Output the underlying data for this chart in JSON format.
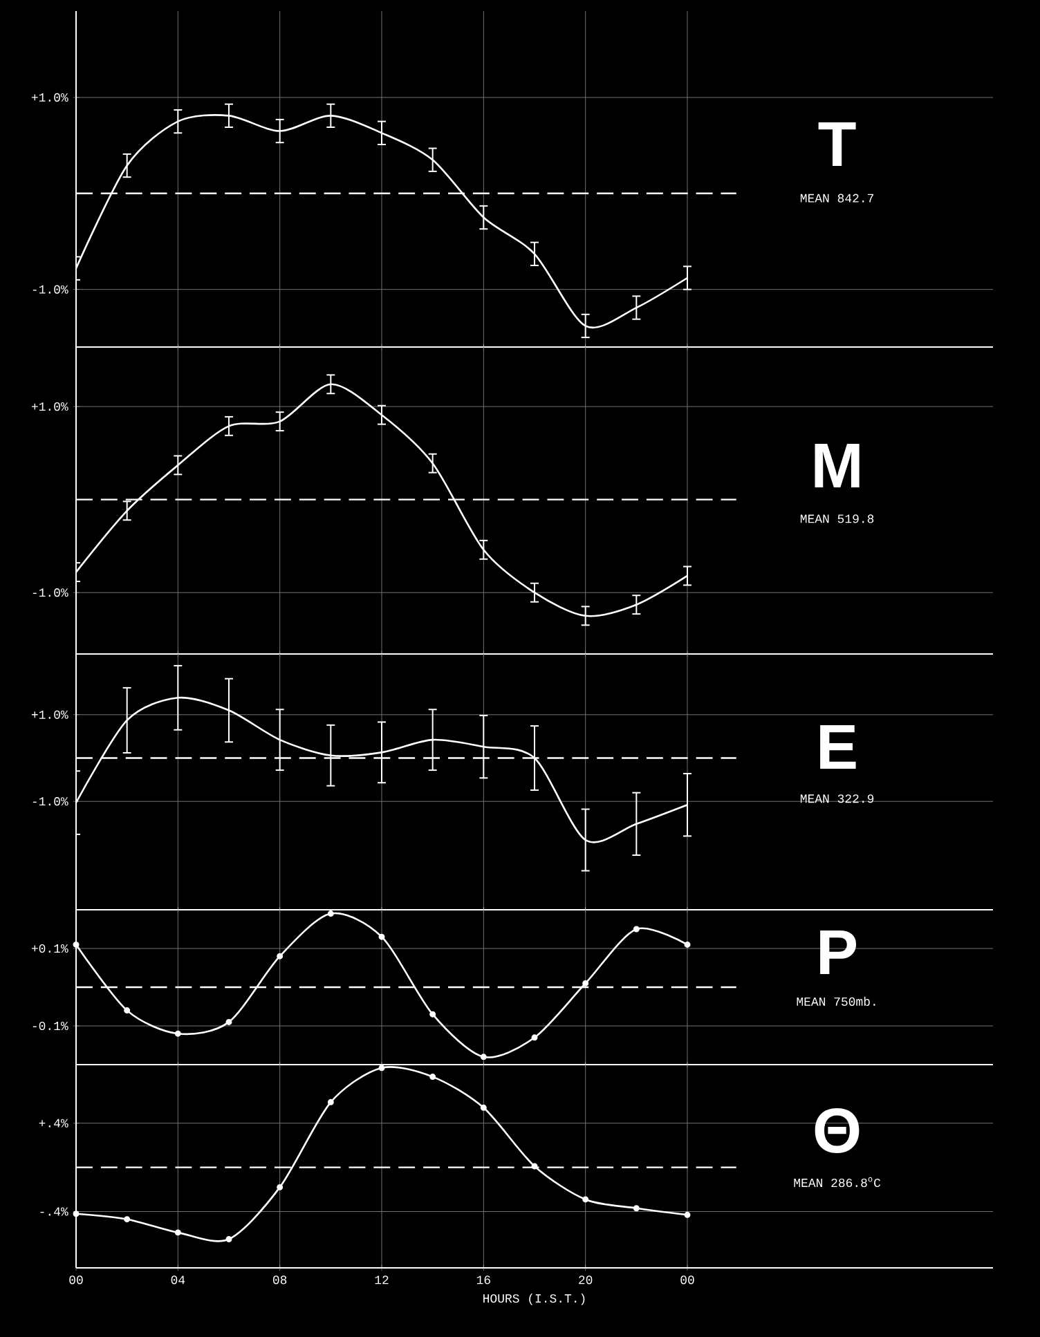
{
  "chart_data": [
    {
      "type": "line",
      "title": "T",
      "annotations": [
        "MEAN 842.7"
      ],
      "x": [
        0,
        2,
        4,
        6,
        8,
        10,
        12,
        14,
        16,
        18,
        20,
        22,
        24
      ],
      "xlim": [
        0,
        36
      ],
      "xticks": [
        {
          "value": 0,
          "label": null
        },
        {
          "value": 4,
          "label": null
        },
        {
          "value": 8,
          "label": null
        },
        {
          "value": 12,
          "label": null
        },
        {
          "value": 16,
          "label": null
        },
        {
          "value": 20,
          "label": null
        },
        {
          "value": 24,
          "label": null
        }
      ],
      "ylim": [
        -1.6,
        1.9
      ],
      "yticks": [
        {
          "value": 1,
          "label": "+1.0%"
        },
        {
          "value": -1,
          "label": "-1.0%"
        }
      ],
      "grid": true,
      "tick_labels": "y",
      "series": [
        {
          "color": "#ffffff",
          "values": [
            -0.78,
            0.29,
            0.75,
            0.81,
            0.65,
            0.81,
            0.63,
            0.35,
            -0.25,
            -0.63,
            -1.38,
            -1.19,
            -0.88
          ],
          "errors": [
            0.12,
            0.12,
            0.12,
            0.12,
            0.12,
            0.12,
            0.12,
            0.12,
            0.12,
            0.12,
            0.12,
            0.12,
            0.12
          ]
        }
      ],
      "ref_lines": [
        {
          "axis": "y",
          "value": 0,
          "color": "#ffffff",
          "line_style": "dashed"
        }
      ]
    },
    {
      "type": "line",
      "title": "M",
      "annotations": [
        "MEAN 519.8"
      ],
      "x": [
        0,
        2,
        4,
        6,
        8,
        10,
        12,
        14,
        16,
        18,
        20,
        22,
        24
      ],
      "xlim": [
        0,
        36
      ],
      "xticks": [
        {
          "value": 0,
          "label": null
        },
        {
          "value": 4,
          "label": null
        },
        {
          "value": 8,
          "label": null
        },
        {
          "value": 12,
          "label": null
        },
        {
          "value": 16,
          "label": null
        },
        {
          "value": 20,
          "label": null
        },
        {
          "value": 24,
          "label": null
        }
      ],
      "ylim": [
        -1.66,
        1.64
      ],
      "yticks": [
        {
          "value": 1,
          "label": "+1.0%"
        },
        {
          "value": -1,
          "label": "-1.0%"
        }
      ],
      "grid": true,
      "tick_labels": "y",
      "series": [
        {
          "color": "#ffffff",
          "values": [
            -0.78,
            -0.12,
            0.37,
            0.79,
            0.84,
            1.24,
            0.91,
            0.39,
            -0.54,
            -1.0,
            -1.25,
            -1.13,
            -0.82
          ],
          "errors": [
            0.1,
            0.1,
            0.1,
            0.1,
            0.1,
            0.1,
            0.1,
            0.1,
            0.1,
            0.1,
            0.1,
            0.1,
            0.1
          ]
        }
      ],
      "ref_lines": [
        {
          "axis": "y",
          "value": 0,
          "color": "#ffffff",
          "line_style": "dashed"
        }
      ]
    },
    {
      "type": "line",
      "title": "E",
      "annotations": [
        "MEAN 322.9"
      ],
      "x": [
        0,
        2,
        4,
        6,
        8,
        10,
        12,
        14,
        16,
        18,
        20,
        22,
        24
      ],
      "xlim": [
        0,
        36
      ],
      "xticks": [
        {
          "value": 0,
          "label": null
        },
        {
          "value": 4,
          "label": null
        },
        {
          "value": 8,
          "label": null
        },
        {
          "value": 12,
          "label": null
        },
        {
          "value": 16,
          "label": null
        },
        {
          "value": 20,
          "label": null
        },
        {
          "value": 24,
          "label": null
        }
      ],
      "ylim": [
        -3.5,
        2.4
      ],
      "yticks": [
        {
          "value": 1,
          "label": "+1.0%"
        },
        {
          "value": -1,
          "label": "-1.0%"
        }
      ],
      "grid": true,
      "tick_labels": "y",
      "series": [
        {
          "color": "#ffffff",
          "values": [
            -1.03,
            0.87,
            1.39,
            1.1,
            0.42,
            0.06,
            0.13,
            0.42,
            0.26,
            0.0,
            -1.89,
            -1.52,
            -1.08
          ],
          "errors": [
            0.73,
            0.75,
            0.74,
            0.73,
            0.7,
            0.7,
            0.7,
            0.7,
            0.72,
            0.74,
            0.71,
            0.72,
            0.72
          ]
        }
      ],
      "ref_lines": [
        {
          "axis": "y",
          "value": 0,
          "color": "#ffffff",
          "line_style": "dashed"
        }
      ]
    },
    {
      "type": "line",
      "title": "P",
      "annotations": [
        "MEAN 750mb."
      ],
      "x": [
        0,
        2,
        4,
        6,
        8,
        10,
        12,
        14,
        16,
        18,
        20,
        22,
        24
      ],
      "xlim": [
        0,
        36
      ],
      "xticks": [
        {
          "value": 0,
          "label": null
        },
        {
          "value": 4,
          "label": null
        },
        {
          "value": 8,
          "label": null
        },
        {
          "value": 12,
          "label": null
        },
        {
          "value": 16,
          "label": null
        },
        {
          "value": 20,
          "label": null
        },
        {
          "value": 24,
          "label": null
        }
      ],
      "ylim": [
        -0.2,
        0.2
      ],
      "yticks": [
        {
          "value": 0.1,
          "label": "+0.1%"
        },
        {
          "value": -0.1,
          "label": "-0.1%"
        }
      ],
      "grid": true,
      "tick_labels": "y",
      "marker": "circle",
      "series": [
        {
          "color": "#ffffff",
          "values": [
            0.11,
            -0.06,
            -0.12,
            -0.09,
            0.08,
            0.19,
            0.13,
            -0.07,
            -0.18,
            -0.13,
            0.01,
            0.15,
            0.11
          ]
        }
      ],
      "ref_lines": [
        {
          "axis": "y",
          "value": 0,
          "color": "#ffffff",
          "line_style": "dashed"
        }
      ]
    },
    {
      "type": "line",
      "title": "Θ",
      "annotations": [
        "MEAN 286.8$^{o}$C"
      ],
      "xlabel": "HOURS (I.S.T.)",
      "x": [
        0,
        2,
        4,
        6,
        8,
        10,
        12,
        14,
        16,
        18,
        20,
        22,
        24
      ],
      "xlim": [
        0,
        36
      ],
      "xticks": [
        {
          "value": 0,
          "label": "00"
        },
        {
          "value": 4,
          "label": "04"
        },
        {
          "value": 8,
          "label": "08"
        },
        {
          "value": 12,
          "label": "12"
        },
        {
          "value": 16,
          "label": "16"
        },
        {
          "value": 20,
          "label": "20"
        },
        {
          "value": 24,
          "label": "00"
        }
      ],
      "ylim": [
        -0.91,
        0.93
      ],
      "yticks": [
        {
          "value": 0.4,
          "label": "+.4%"
        },
        {
          "value": -0.4,
          "label": "-.4%"
        }
      ],
      "grid": true,
      "marker": "circle",
      "series": [
        {
          "color": "#ffffff",
          "values": [
            -0.42,
            -0.47,
            -0.59,
            -0.65,
            -0.18,
            0.59,
            0.9,
            0.82,
            0.54,
            0.01,
            -0.29,
            -0.37,
            -0.43
          ]
        }
      ],
      "ref_lines": [
        {
          "axis": "y",
          "value": 0,
          "color": "#ffffff",
          "line_style": "dashed"
        }
      ]
    }
  ]
}
